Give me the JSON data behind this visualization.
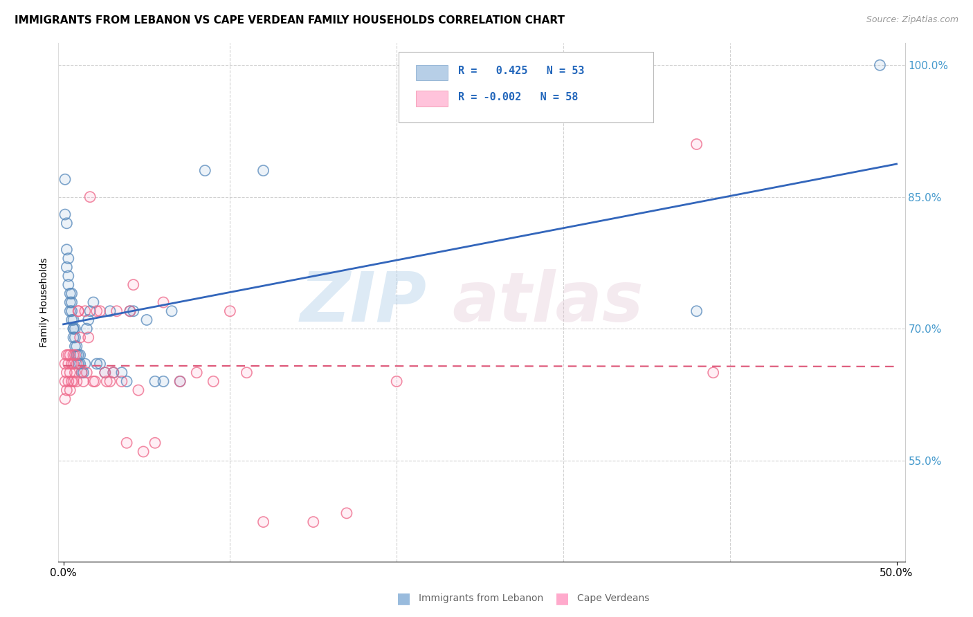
{
  "title": "IMMIGRANTS FROM LEBANON VS CAPE VERDEAN FAMILY HOUSEHOLDS CORRELATION CHART",
  "source": "Source: ZipAtlas.com",
  "ylabel": "Family Households",
  "xlabel_blue": "Immigrants from Lebanon",
  "xlabel_pink": "Cape Verdeans",
  "watermark_zip": "ZIP",
  "watermark_atlas": "atlas",
  "legend_blue_R": " 0.425",
  "legend_blue_N": "53",
  "legend_pink_R": "-0.002",
  "legend_pink_N": "58",
  "xlim": [
    -0.003,
    0.505
  ],
  "ylim": [
    0.435,
    1.025
  ],
  "yticks": [
    0.55,
    0.7,
    0.85,
    1.0
  ],
  "ytick_labels": [
    "55.0%",
    "70.0%",
    "85.0%",
    "100.0%"
  ],
  "xtick_left": 0.0,
  "xtick_right": 0.5,
  "xtick_left_label": "0.0%",
  "xtick_right_label": "50.0%",
  "xticks_minor": [
    0.1,
    0.2,
    0.3,
    0.4
  ],
  "blue_color": "#99BBDD",
  "pink_color": "#FFAACC",
  "blue_edge_color": "#5588BB",
  "pink_edge_color": "#EE6688",
  "trend_blue_color": "#3366BB",
  "trend_pink_color": "#DD5577",
  "blue_x": [
    0.001,
    0.001,
    0.002,
    0.002,
    0.002,
    0.003,
    0.003,
    0.003,
    0.004,
    0.004,
    0.004,
    0.005,
    0.005,
    0.005,
    0.005,
    0.006,
    0.006,
    0.006,
    0.006,
    0.007,
    0.007,
    0.007,
    0.008,
    0.008,
    0.009,
    0.009,
    0.01,
    0.01,
    0.011,
    0.012,
    0.013,
    0.014,
    0.015,
    0.016,
    0.018,
    0.02,
    0.022,
    0.025,
    0.028,
    0.03,
    0.035,
    0.038,
    0.04,
    0.042,
    0.05,
    0.055,
    0.06,
    0.065,
    0.07,
    0.085,
    0.12,
    0.38,
    0.49
  ],
  "blue_y": [
    0.87,
    0.83,
    0.82,
    0.79,
    0.77,
    0.78,
    0.76,
    0.75,
    0.74,
    0.73,
    0.72,
    0.74,
    0.73,
    0.72,
    0.71,
    0.71,
    0.7,
    0.7,
    0.69,
    0.7,
    0.69,
    0.68,
    0.68,
    0.67,
    0.67,
    0.66,
    0.67,
    0.66,
    0.65,
    0.65,
    0.66,
    0.7,
    0.71,
    0.72,
    0.73,
    0.66,
    0.66,
    0.65,
    0.72,
    0.65,
    0.65,
    0.64,
    0.72,
    0.72,
    0.71,
    0.64,
    0.64,
    0.72,
    0.64,
    0.88,
    0.88,
    0.72,
    1.0
  ],
  "pink_x": [
    0.001,
    0.001,
    0.001,
    0.002,
    0.002,
    0.002,
    0.003,
    0.003,
    0.003,
    0.004,
    0.004,
    0.004,
    0.005,
    0.005,
    0.006,
    0.006,
    0.006,
    0.007,
    0.007,
    0.008,
    0.008,
    0.009,
    0.009,
    0.01,
    0.011,
    0.012,
    0.013,
    0.014,
    0.015,
    0.016,
    0.018,
    0.019,
    0.02,
    0.022,
    0.025,
    0.026,
    0.028,
    0.03,
    0.032,
    0.035,
    0.038,
    0.04,
    0.042,
    0.045,
    0.048,
    0.055,
    0.06,
    0.07,
    0.08,
    0.09,
    0.1,
    0.11,
    0.12,
    0.15,
    0.17,
    0.2,
    0.38,
    0.39
  ],
  "pink_y": [
    0.66,
    0.64,
    0.62,
    0.67,
    0.65,
    0.63,
    0.67,
    0.66,
    0.64,
    0.67,
    0.65,
    0.63,
    0.66,
    0.64,
    0.67,
    0.66,
    0.64,
    0.67,
    0.65,
    0.66,
    0.64,
    0.72,
    0.72,
    0.69,
    0.65,
    0.64,
    0.72,
    0.65,
    0.69,
    0.85,
    0.64,
    0.64,
    0.72,
    0.72,
    0.65,
    0.64,
    0.64,
    0.65,
    0.72,
    0.64,
    0.57,
    0.72,
    0.75,
    0.63,
    0.56,
    0.57,
    0.73,
    0.64,
    0.65,
    0.64,
    0.72,
    0.65,
    0.48,
    0.48,
    0.49,
    0.64,
    0.91,
    0.65
  ],
  "background_color": "#ffffff",
  "grid_color": "#cccccc",
  "marker_size": 120,
  "marker_alpha_fill": 0.18,
  "marker_alpha_edge": 0.75
}
